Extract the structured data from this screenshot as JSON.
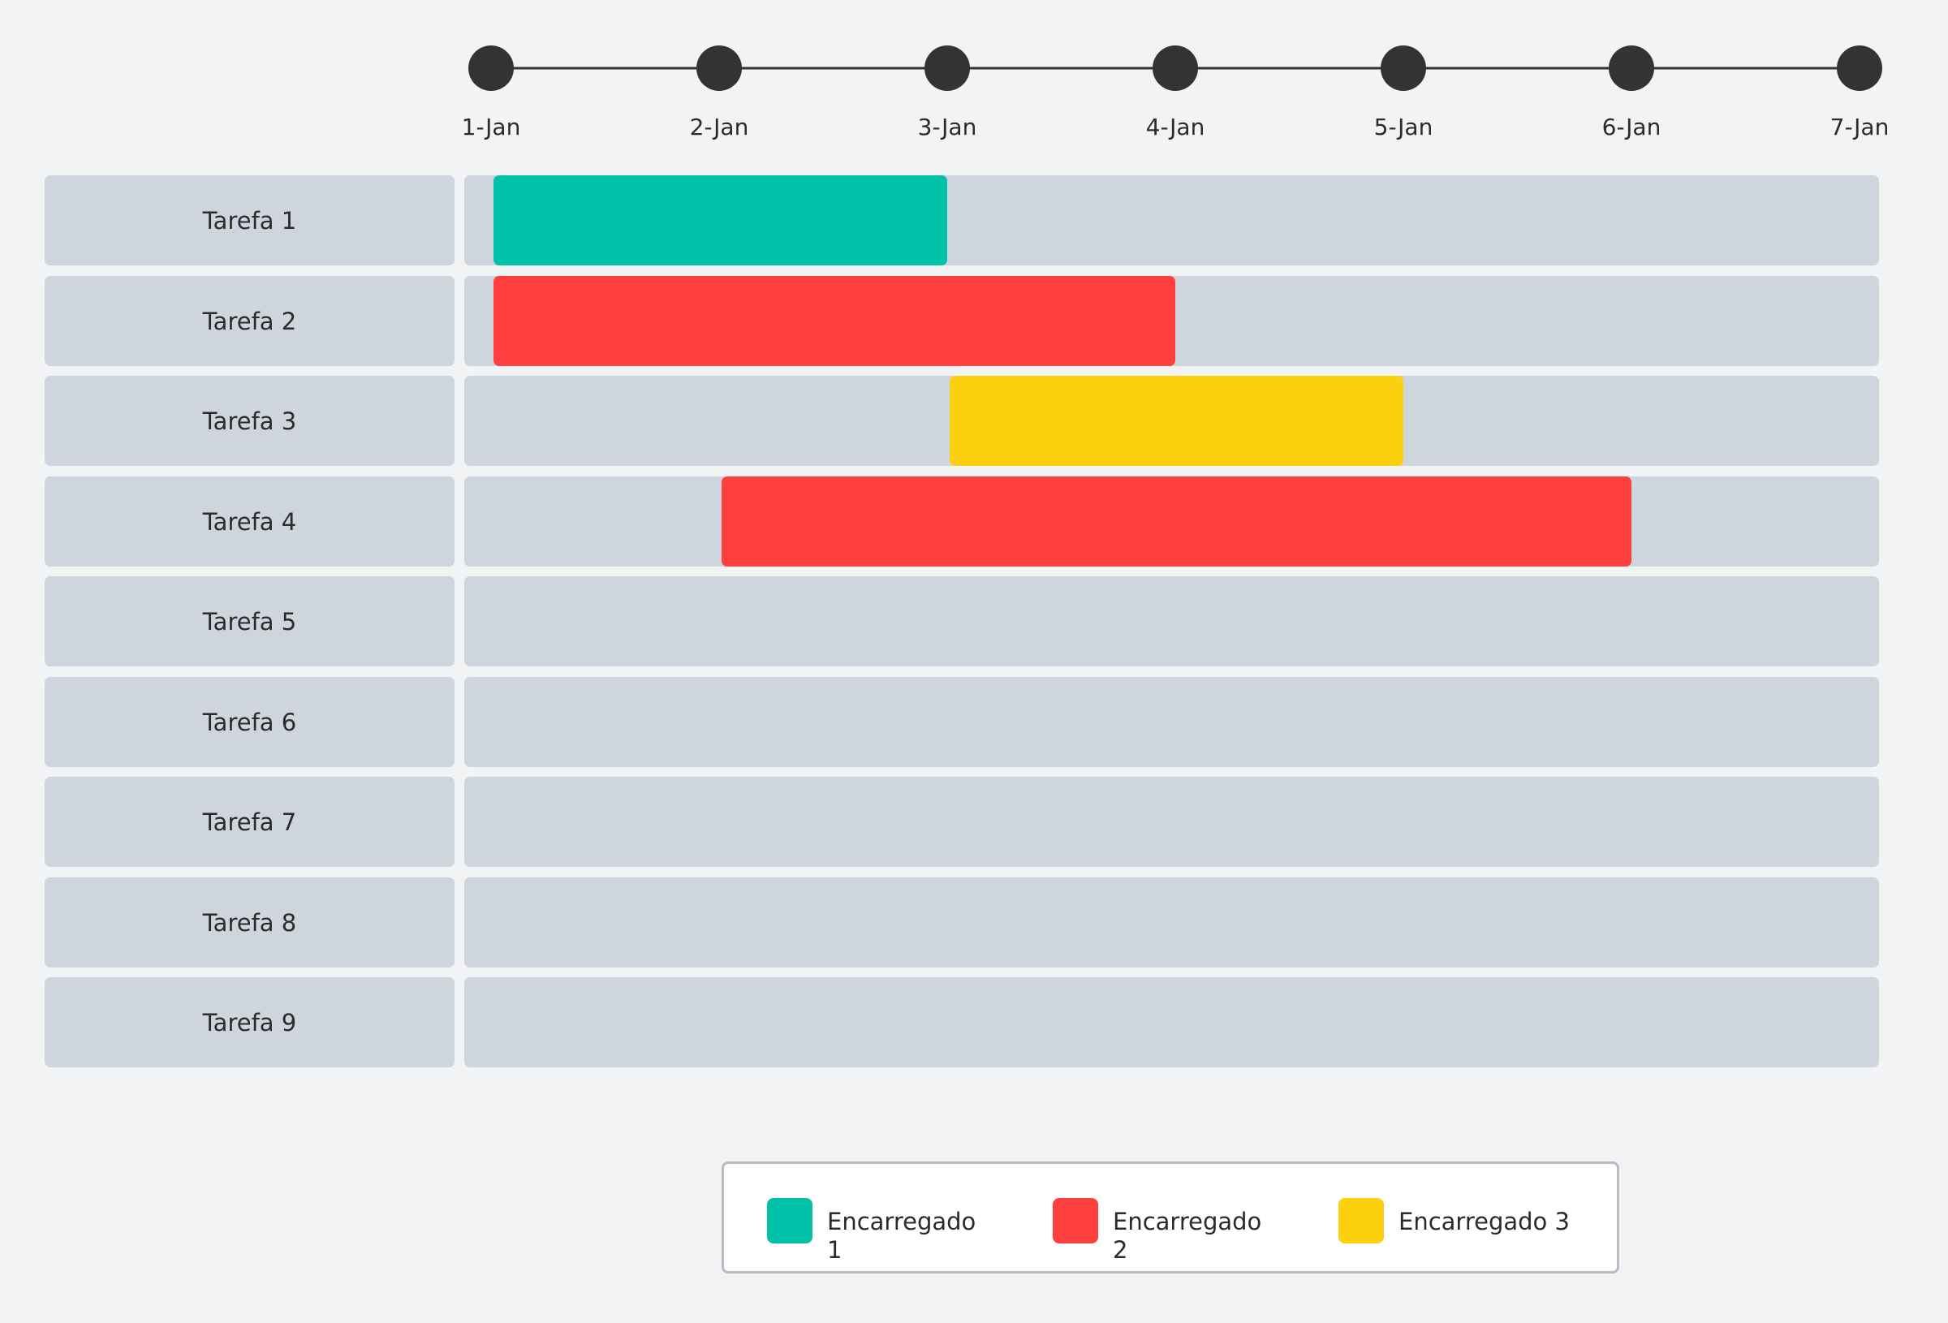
{
  "chart_data": {
    "type": "gantt",
    "dates": [
      "1-Jan",
      "2-Jan",
      "3-Jan",
      "4-Jan",
      "5-Jan",
      "6-Jan",
      "7-Jan"
    ],
    "tasks": [
      {
        "label": "Tarefa 1",
        "start": "1-Jan",
        "end": "3-Jan",
        "owner": "Encarregado 1"
      },
      {
        "label": "Tarefa 2",
        "start": "1-Jan",
        "end": "4-Jan",
        "owner": "Encarregado 2"
      },
      {
        "label": "Tarefa 3",
        "start": "3-Jan",
        "end": "5-Jan",
        "owner": "Encarregado 3"
      },
      {
        "label": "Tarefa 4",
        "start": "2-Jan",
        "end": "6-Jan",
        "owner": "Encarregado 2"
      },
      {
        "label": "Tarefa 5"
      },
      {
        "label": "Tarefa 6"
      },
      {
        "label": "Tarefa 7"
      },
      {
        "label": "Tarefa 8"
      },
      {
        "label": "Tarefa 9"
      }
    ],
    "legend": {
      "position": "bottom-center",
      "items": [
        {
          "name": "Encarregado 1",
          "color": "#00c2a8"
        },
        {
          "name": "Encarregado 2",
          "color": "#ff3e3e"
        },
        {
          "name": "Encarregado 3",
          "color": "#fcd00e"
        }
      ]
    },
    "colors": {
      "background": "#f1f3f5",
      "track": "#ced5dd",
      "timeline": "#333333"
    }
  }
}
